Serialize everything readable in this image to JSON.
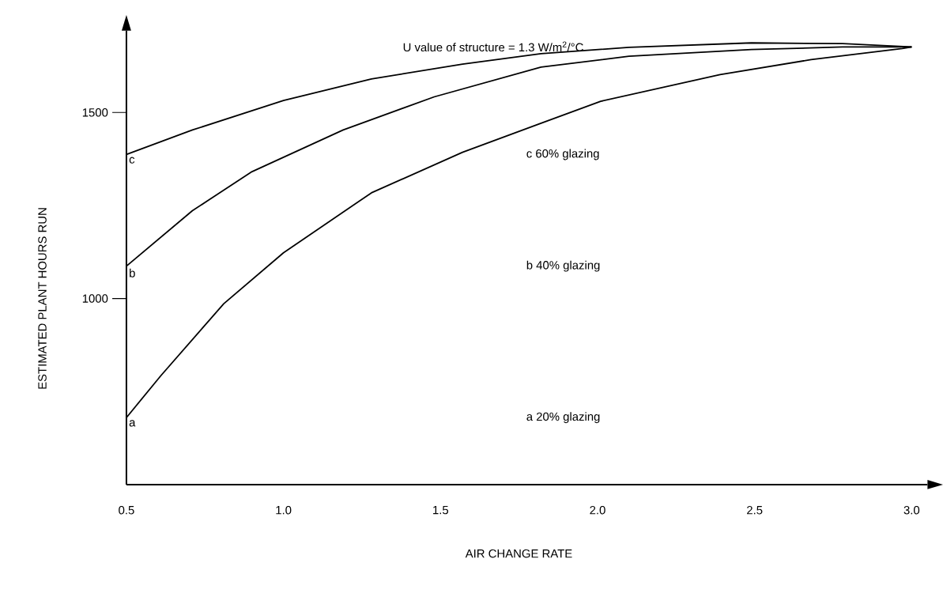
{
  "chart_data": {
    "type": "line",
    "title": "U  value of structure = 1.3 W/m$^{2}$/°C",
    "xlabel": "AIR CHANGE RATE",
    "ylabel": "ESTIMATED PLANT HOURS RUN",
    "xlim": [
      0.5,
      3.05
    ],
    "ylim": [
      500,
      1720
    ],
    "xticks": [
      {
        "value": 0.5,
        "label": "0.5"
      },
      {
        "value": 1.0,
        "label": "1.0"
      },
      {
        "value": 1.5,
        "label": "1.5"
      },
      {
        "value": 2.0,
        "label": "2.0"
      },
      {
        "value": 2.5,
        "label": "2.5"
      },
      {
        "value": 3.0,
        "label": "3.0"
      }
    ],
    "yticks": [
      1000,
      1500
    ],
    "annotations": [
      "c  60% glazing",
      "b  40% glazing",
      "a  20% glazing"
    ],
    "series": [
      {
        "name": "a",
        "color": "#000000",
        "x": [
          0.5,
          0.61,
          0.81,
          1.0,
          1.28,
          1.57,
          1.82,
          2.01,
          2.39,
          2.68,
          2.97,
          3.0
        ],
        "values": [
          680,
          793,
          986,
          1123,
          1284,
          1393,
          1471,
          1530,
          1602,
          1642,
          1672,
          1676
        ]
      },
      {
        "name": "b",
        "color": "#000000",
        "x": [
          0.5,
          0.71,
          0.9,
          1.19,
          1.48,
          1.82,
          2.1,
          2.49,
          2.78,
          3.0
        ],
        "values": [
          1087,
          1236,
          1341,
          1453,
          1542,
          1622,
          1651,
          1669,
          1676,
          1676
        ]
      },
      {
        "name": "c",
        "color": "#000000",
        "x": [
          0.5,
          0.71,
          1.0,
          1.28,
          1.57,
          1.82,
          2.1,
          2.49,
          2.78,
          3.0
        ],
        "values": [
          1387,
          1453,
          1532,
          1590,
          1630,
          1658,
          1675,
          1687,
          1685,
          1676
        ]
      }
    ]
  }
}
